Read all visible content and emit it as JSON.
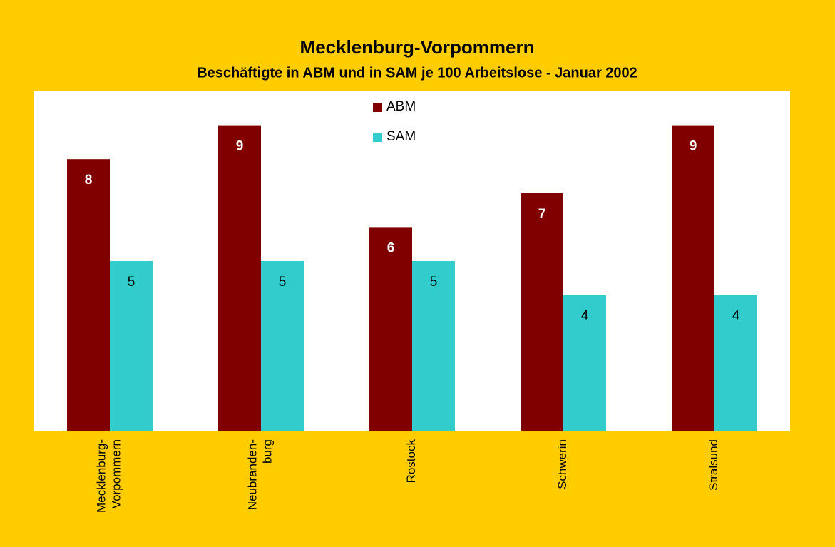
{
  "chart_data": {
    "type": "bar",
    "title": "Mecklenburg-Vorpommern",
    "subtitle": "Beschäftigte in ABM und in SAM je 100 Arbeitslose  - Januar 2002",
    "categories": [
      "Mecklenburg-\nVorpommern",
      "Neubranden-\nburg",
      "Rostock",
      "Schwerin",
      "Stralsund"
    ],
    "series": [
      {
        "name": "ABM",
        "color": "#800000",
        "values": [
          8,
          9,
          6,
          7,
          9
        ]
      },
      {
        "name": "SAM",
        "color": "#33CCCC",
        "values": [
          5,
          5,
          5,
          4,
          4
        ]
      }
    ],
    "ylim": [
      0,
      10
    ],
    "legend": "top"
  }
}
